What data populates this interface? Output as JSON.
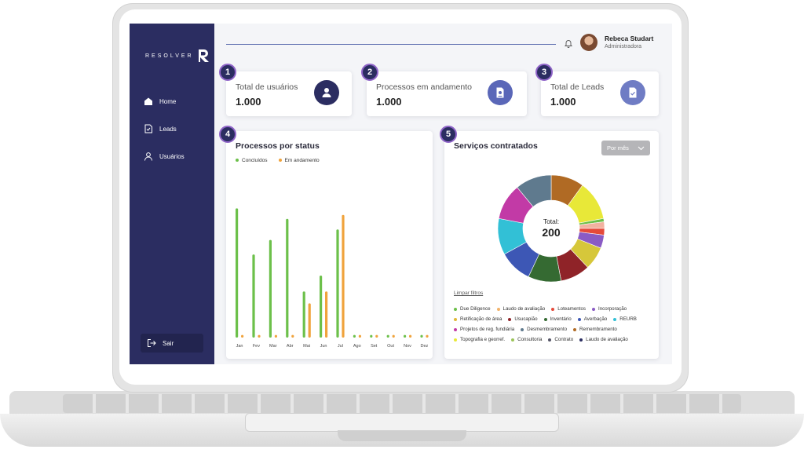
{
  "brand": {
    "name": "RESOLVER"
  },
  "sidebar": {
    "items": [
      {
        "label": "Home",
        "icon": "home-icon"
      },
      {
        "label": "Leads",
        "icon": "document-icon"
      },
      {
        "label": "Usuários",
        "icon": "user-icon"
      }
    ],
    "logout_label": "Sair"
  },
  "header": {
    "user_name": "Rebeca Studart",
    "user_role": "Administradora"
  },
  "stats": [
    {
      "badge": "1",
      "label": "Total de usuários",
      "value": "1.000",
      "icon": "user-icon",
      "color": "#2b2d61"
    },
    {
      "badge": "2",
      "label": "Processos em andamento",
      "value": "1.000",
      "icon": "process-document-icon",
      "color": "#5a67b8"
    },
    {
      "badge": "3",
      "label": "Total de Leads",
      "value": "1.000",
      "icon": "checked-document-icon",
      "color": "#6f7cc4"
    }
  ],
  "panels": {
    "status": {
      "badge": "4",
      "title": "Processos por status"
    },
    "services": {
      "badge": "5",
      "title": "Serviços contratados",
      "dropdown_label": "Por mês",
      "clear_filters": "Limpar filtros",
      "total_label": "Total:",
      "total_value": "200"
    }
  },
  "chart_data": [
    {
      "type": "bar",
      "title": "Processos por status",
      "categories": [
        "Jan",
        "Fev",
        "Mar",
        "Abr",
        "Mai",
        "Jun",
        "Jul",
        "Ago",
        "Set",
        "Out",
        "Nov",
        "Dez"
      ],
      "series": [
        {
          "name": "Concluídos",
          "color": "#6cc04a",
          "values": [
            98,
            63,
            74,
            90,
            35,
            47,
            82,
            2,
            2,
            2,
            2,
            2
          ]
        },
        {
          "name": "Em andamento",
          "color": "#f0a33c",
          "values": [
            2,
            2,
            2,
            2,
            26,
            35,
            93,
            2,
            2,
            2,
            2,
            2
          ]
        }
      ],
      "ylim": [
        0,
        100
      ]
    },
    {
      "type": "pie",
      "title": "Serviços contratados",
      "slices": [
        {
          "label": "",
          "value": 10,
          "color": "#b06a24"
        },
        {
          "label": "",
          "value": 12,
          "color": "#e8e838"
        },
        {
          "label": "",
          "value": 1,
          "color": "#6cc04a"
        },
        {
          "label": "",
          "value": 2,
          "color": "#f2b2a0"
        },
        {
          "label": "",
          "value": 2,
          "color": "#e54a3a"
        },
        {
          "label": "",
          "value": 4,
          "color": "#8a5bc4"
        },
        {
          "label": "",
          "value": 7,
          "color": "#d6c73a"
        },
        {
          "label": "",
          "value": 9,
          "color": "#8f2328"
        },
        {
          "label": "",
          "value": 10,
          "color": "#356a32"
        },
        {
          "label": "",
          "value": 10,
          "color": "#3d57b5"
        },
        {
          "label": "",
          "value": 11,
          "color": "#32c0d6"
        },
        {
          "label": "",
          "value": 11,
          "color": "#c23aa6"
        },
        {
          "label": "",
          "value": 11,
          "color": "#5f7a8e"
        }
      ]
    }
  ],
  "services_legend": [
    {
      "label": "Due Diligence",
      "color": "#6cc04a"
    },
    {
      "label": "Laudo de avaliação",
      "color": "#f2b36a"
    },
    {
      "label": "Loteamentos",
      "color": "#e54a3a"
    },
    {
      "label": "Incorporação",
      "color": "#8a5bc4"
    },
    {
      "label": "Retificação de área",
      "color": "#e0b838"
    },
    {
      "label": "Usucapião",
      "color": "#8f2328"
    },
    {
      "label": "Inventário",
      "color": "#356a32"
    },
    {
      "label": "Averbação",
      "color": "#3d57b5"
    },
    {
      "label": "REURB",
      "color": "#32c0d6"
    },
    {
      "label": "Projetos de reg. fundiária",
      "color": "#c23aa6"
    },
    {
      "label": "Desmembramento",
      "color": "#5f7a8e"
    },
    {
      "label": "Remembramento",
      "color": "#b06a24"
    },
    {
      "label": "Topografia e georref.",
      "color": "#e8e838"
    },
    {
      "label": "Consultoria",
      "color": "#9bc45a"
    },
    {
      "label": "Contrato",
      "color": "#555566"
    },
    {
      "label": "Laudo de avaliação",
      "color": "#2b2d61"
    }
  ]
}
